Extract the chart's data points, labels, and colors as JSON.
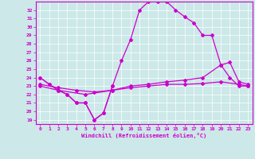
{
  "background_color": "#cce8e8",
  "line_color": "#cc00cc",
  "xlim": [
    -0.5,
    23.5
  ],
  "ylim": [
    18.5,
    33.0
  ],
  "xticks": [
    0,
    1,
    2,
    3,
    4,
    5,
    6,
    7,
    8,
    9,
    10,
    11,
    12,
    13,
    14,
    15,
    16,
    17,
    18,
    19,
    20,
    21,
    22,
    23
  ],
  "yticks": [
    19,
    20,
    21,
    22,
    23,
    24,
    25,
    26,
    27,
    28,
    29,
    30,
    31,
    32
  ],
  "xlabel": "Windchill (Refroidissement éolien,°C)",
  "curve1_x": [
    0,
    1,
    2,
    3,
    4,
    5,
    6,
    7,
    8
  ],
  "curve1_y": [
    24,
    23.2,
    22.5,
    22,
    21,
    21,
    19,
    19.8,
    23
  ],
  "curve2_x": [
    0,
    1,
    2,
    3,
    4,
    5,
    6,
    7,
    8,
    9,
    10,
    11,
    12,
    13,
    14,
    15,
    16,
    17,
    18,
    19,
    20,
    21,
    22,
    23
  ],
  "curve2_y": [
    24,
    23.2,
    22.5,
    22,
    21,
    21,
    19,
    19.8,
    23,
    26,
    28.5,
    32,
    33,
    33,
    33,
    32,
    31.2,
    30.5,
    29,
    29,
    25.5,
    24,
    23,
    23
  ],
  "curve3_x": [
    0,
    2,
    5,
    8,
    10,
    12,
    14,
    16,
    18,
    20,
    21,
    22,
    23
  ],
  "curve3_y": [
    23,
    22.5,
    22,
    22.5,
    23,
    23.2,
    23.5,
    23.7,
    24,
    25.5,
    25.8,
    23.5,
    23.2
  ],
  "curve4_x": [
    0,
    2,
    4,
    6,
    8,
    10,
    12,
    14,
    16,
    18,
    20,
    22,
    23
  ],
  "curve4_y": [
    23.2,
    22.8,
    22.5,
    22.3,
    22.5,
    22.8,
    23,
    23.2,
    23.2,
    23.3,
    23.5,
    23.2,
    23
  ]
}
